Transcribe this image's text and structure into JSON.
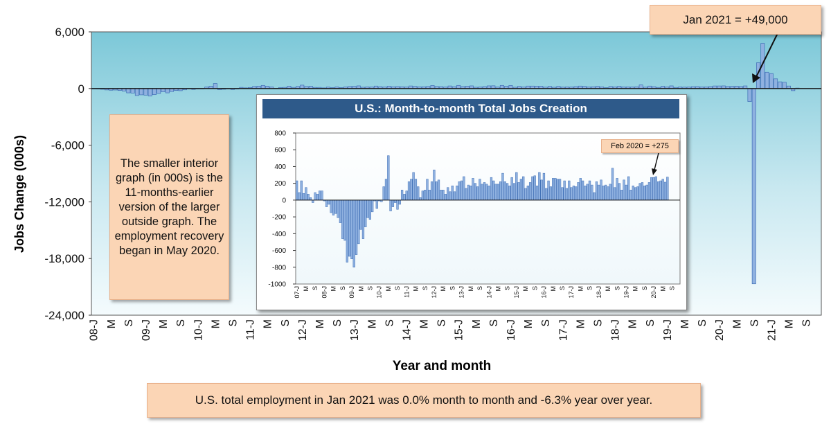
{
  "chart_data": [
    {
      "type": "bar",
      "xlabel": "Year and month",
      "ylabel": "Jobs Change (000s)",
      "ylim": [
        -24000,
        6000
      ],
      "yticks": [
        -24000,
        -18000,
        -12000,
        -6000,
        0,
        6000
      ],
      "ytick_labels": [
        "-24,000",
        "-18,000",
        "-12,000",
        "-6,000",
        "0",
        "6,000"
      ],
      "xtick_labels": [
        "08-J",
        "M",
        "S",
        "09-J",
        "M",
        "S",
        "10-J",
        "M",
        "S",
        "11-J",
        "M",
        "S",
        "12-J",
        "M",
        "S",
        "13-J",
        "M",
        "S",
        "14-J",
        "M",
        "S",
        "15-J",
        "M",
        "S",
        "16-J",
        "M",
        "S",
        "17-J",
        "M",
        "S",
        "18-J",
        "M",
        "S",
        "19-J",
        "M",
        "S",
        "20-J",
        "M",
        "S",
        "21-J",
        "M",
        "S"
      ],
      "start": "2008-01",
      "values": [
        -10,
        -50,
        -80,
        -150,
        -180,
        -160,
        -210,
        -270,
        -460,
        -480,
        -740,
        -670,
        -700,
        -800,
        -650,
        -520,
        -350,
        -460,
        -320,
        -210,
        -230,
        -140,
        -10,
        -100,
        -10,
        -20,
        160,
        250,
        530,
        -130,
        -80,
        -30,
        -110,
        -50,
        120,
        70,
        110,
        220,
        250,
        330,
        250,
        160,
        30,
        110,
        120,
        250,
        120,
        220,
        360,
        220,
        240,
        120,
        120,
        70,
        150,
        100,
        170,
        100,
        170,
        220,
        230,
        280,
        140,
        180,
        170,
        260,
        200,
        160,
        250,
        190,
        210,
        190,
        170,
        270,
        230,
        190,
        190,
        220,
        320,
        220,
        200,
        170,
        270,
        200,
        330,
        210,
        250,
        280,
        140,
        170,
        210,
        280,
        290,
        170,
        330,
        240,
        320,
        140,
        230,
        160,
        260,
        260,
        250,
        250,
        150,
        230,
        140,
        230,
        150,
        170,
        160,
        210,
        260,
        230,
        170,
        190,
        230,
        180,
        90,
        220,
        180,
        240,
        170,
        180,
        160,
        190,
        380,
        150,
        260,
        200,
        120,
        240,
        180,
        280,
        120,
        170,
        150,
        160,
        200,
        210,
        170,
        180,
        210,
        270,
        270,
        280,
        220,
        230,
        250,
        214,
        275,
        -1373,
        -20679,
        2725,
        4781,
        1726,
        1583,
        1027,
        711,
        672,
        264,
        -227,
        49
      ]
    },
    {
      "type": "bar",
      "title": "U.S.: Month-to-month Total Jobs Creation",
      "ylim": [
        -1000,
        800
      ],
      "yticks": [
        -1000,
        -800,
        -600,
        -400,
        -200,
        0,
        200,
        400,
        600,
        800
      ],
      "ytick_labels": [
        "-1000",
        "-800",
        "-600",
        "-400",
        "-200",
        "0",
        "200",
        "400",
        "600",
        "800"
      ],
      "xtick_labels": [
        "07-J",
        "M",
        "S",
        "08-J",
        "M",
        "S",
        "09-J",
        "M",
        "S",
        "10-J",
        "M",
        "S",
        "11-J",
        "M",
        "S",
        "12-J",
        "M",
        "S",
        "13-J",
        "M",
        "S",
        "14-J",
        "M",
        "S",
        "15-J",
        "M",
        "S",
        "16-J",
        "M",
        "S",
        "17-J",
        "M",
        "S",
        "18-J",
        "M",
        "S",
        "19-J",
        "M",
        "S",
        "20-J",
        "M",
        "S"
      ],
      "start": "2007-01",
      "values": [
        230,
        90,
        230,
        80,
        150,
        70,
        30,
        -30,
        90,
        70,
        110,
        110,
        -10,
        -80,
        -50,
        -150,
        -180,
        -160,
        -210,
        -270,
        -460,
        -480,
        -740,
        -670,
        -700,
        -800,
        -650,
        -520,
        -350,
        -460,
        -320,
        -210,
        -230,
        -140,
        -10,
        -100,
        -10,
        -20,
        160,
        250,
        530,
        -130,
        -80,
        -30,
        -110,
        -50,
        120,
        70,
        110,
        220,
        250,
        330,
        250,
        160,
        30,
        110,
        120,
        250,
        120,
        220,
        360,
        220,
        240,
        120,
        120,
        70,
        150,
        100,
        170,
        100,
        170,
        220,
        230,
        280,
        140,
        180,
        170,
        260,
        200,
        160,
        250,
        190,
        210,
        190,
        170,
        270,
        230,
        190,
        190,
        220,
        320,
        220,
        200,
        170,
        270,
        200,
        330,
        210,
        250,
        280,
        140,
        170,
        210,
        280,
        290,
        170,
        330,
        240,
        320,
        140,
        230,
        160,
        260,
        260,
        250,
        250,
        150,
        230,
        140,
        230,
        150,
        170,
        160,
        210,
        260,
        230,
        170,
        190,
        230,
        180,
        90,
        220,
        180,
        240,
        170,
        180,
        160,
        190,
        380,
        150,
        260,
        200,
        120,
        240,
        180,
        280,
        120,
        170,
        150,
        160,
        200,
        210,
        170,
        180,
        210,
        270,
        270,
        280,
        220,
        230,
        250,
        214,
        275
      ]
    }
  ],
  "annotations": {
    "main_callout": "Jan 2021 = +49,000",
    "side_note": "The smaller interior graph (in 000s) is the 11-months-earlier version of the larger outside graph. The employment recovery began in May 2020.",
    "footer": "U.S. total employment in Jan 2021 was 0.0% month to month and -6.3% year over year.",
    "inset_callout": "Feb 2020 = +275"
  },
  "colors": {
    "bar_fill": "#8fb1e0",
    "bar_stroke": "#3d6db5",
    "plot_bg_top": "#7cc8d8",
    "plot_bg_bottom": "#f4fbfd",
    "inset_title_bg": "#2e5a8a",
    "note_bg": "#fbd5b5"
  }
}
